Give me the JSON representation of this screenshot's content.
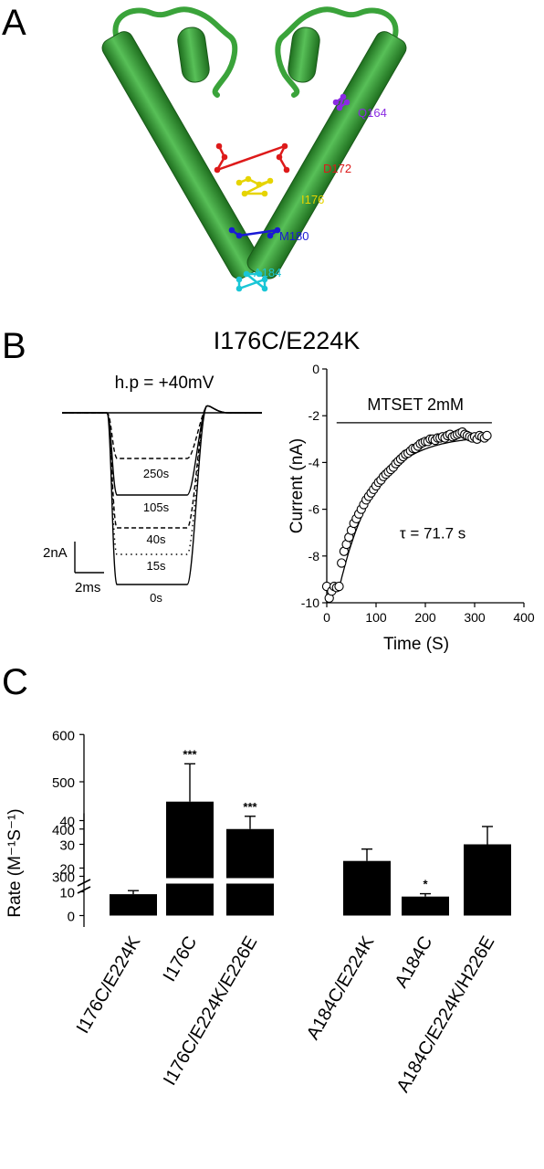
{
  "panels": {
    "a": {
      "letter": "A"
    },
    "b": {
      "letter": "B",
      "title": "I176C/E224K"
    },
    "c": {
      "letter": "C"
    }
  },
  "panel_a": {
    "residues": [
      {
        "label": "Q164",
        "color": "#8a2be2"
      },
      {
        "label": "D172",
        "color": "#dd1a1a"
      },
      {
        "label": "I176",
        "color": "#e6d400"
      },
      {
        "label": "M180",
        "color": "#1a1ad6"
      },
      {
        "label": "A184",
        "color": "#19c6d6"
      }
    ],
    "helix_color": "#3aa33a"
  },
  "traces": {
    "holding": "h.p = +40mV",
    "labels": [
      "250s",
      "105s",
      "40s",
      "15s",
      "0s"
    ],
    "scale_current": "2nA",
    "scale_time": "2ms"
  },
  "chart_data": [
    {
      "type": "scatter",
      "annotation": "MTSET 2mM",
      "tau_text": "τ = 71.7 s",
      "xlabel": "Time (S)",
      "ylabel": "Current (nA)",
      "xlim": [
        0,
        400
      ],
      "ylim": [
        -10,
        0
      ],
      "xticks": [
        0,
        100,
        200,
        300,
        400
      ],
      "yticks": [
        0,
        -2,
        -4,
        -6,
        -8,
        -10
      ],
      "bar_range": [
        20,
        335
      ],
      "series": [
        {
          "x": [
            0,
            5,
            10,
            15,
            20,
            25,
            30,
            35,
            40,
            45,
            50,
            55,
            60,
            65,
            70,
            75,
            80,
            85,
            90,
            95,
            100,
            105,
            110,
            115,
            120,
            125,
            130,
            135,
            140,
            145,
            150,
            155,
            160,
            165,
            170,
            175,
            180,
            185,
            190,
            195,
            200,
            205,
            210,
            215,
            220,
            225,
            230,
            235,
            240,
            245,
            250,
            255,
            260,
            265,
            270,
            275,
            280,
            285,
            290,
            295,
            300,
            305,
            310,
            315,
            320,
            325
          ],
          "y": [
            -9.3,
            -9.8,
            -9.5,
            -9.3,
            -9.35,
            -9.3,
            -8.3,
            -7.8,
            -7.5,
            -7.2,
            -6.9,
            -6.6,
            -6.4,
            -6.2,
            -6.0,
            -5.8,
            -5.6,
            -5.45,
            -5.3,
            -5.15,
            -5.0,
            -4.85,
            -4.75,
            -4.6,
            -4.5,
            -4.4,
            -4.3,
            -4.2,
            -4.05,
            -3.95,
            -3.85,
            -3.75,
            -3.65,
            -3.6,
            -3.5,
            -3.4,
            -3.4,
            -3.3,
            -3.2,
            -3.15,
            -3.1,
            -3.1,
            -3.0,
            -3.0,
            -3.05,
            -2.95,
            -2.95,
            -2.9,
            -2.95,
            -2.85,
            -2.8,
            -2.9,
            -2.85,
            -2.8,
            -2.75,
            -2.7,
            -2.8,
            -2.85,
            -2.9,
            -2.95,
            -2.9,
            -3.0,
            -2.85,
            -2.9,
            -2.95,
            -2.85
          ]
        }
      ],
      "fit": {
        "y0": -9.4,
        "yinf": -2.85,
        "t0": 25,
        "tau": 71.7
      }
    },
    {
      "type": "bar",
      "ylabel": "Rate (M⁻¹S⁻¹)",
      "axis_break": [
        40,
        300
      ],
      "yticks_lower": [
        0,
        10,
        20,
        30,
        40
      ],
      "yticks_upper": [
        300,
        400,
        500,
        600
      ],
      "categories": [
        "I176C/E224K",
        "I176C",
        "I176C/E224K/E226E",
        "A184C/E224K",
        "A184C",
        "A184C/E224K/H226E"
      ],
      "values": [
        9,
        458,
        400,
        23,
        8,
        30
      ],
      "errors": [
        1.5,
        80,
        27,
        5,
        1.2,
        7.5
      ],
      "significance": [
        "",
        "***",
        "***",
        "",
        "*",
        ""
      ]
    }
  ]
}
